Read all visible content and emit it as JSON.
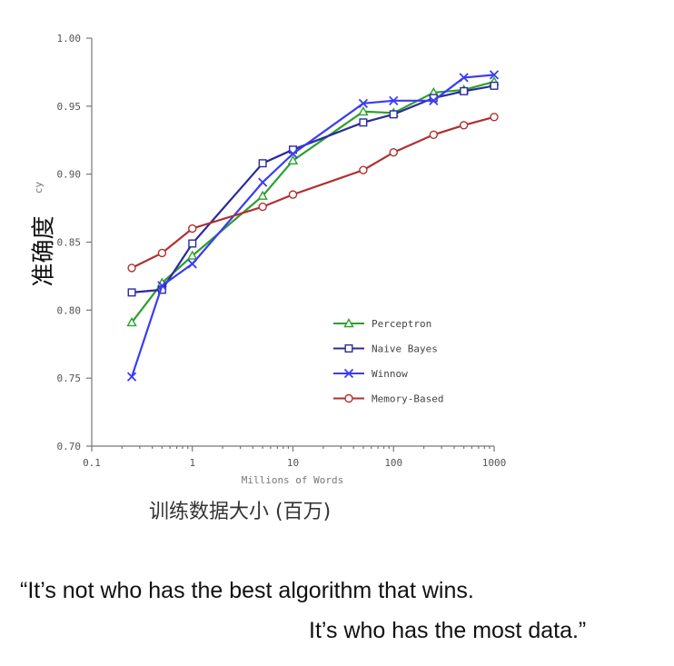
{
  "chart_data": {
    "type": "line",
    "title": "",
    "xlabel": "Millions of Words",
    "ylabel_overlay": "准确度",
    "ylabel_residue": "cy",
    "xlabel_overlay": "训练数据大小 (百万)",
    "x_scale": "log",
    "xlim": [
      0.1,
      1000
    ],
    "ylim": [
      0.7,
      1.0
    ],
    "x_ticks": [
      "0.1",
      "1",
      "10",
      "100",
      "1000"
    ],
    "y_ticks": [
      "0.70",
      "0.75",
      "0.80",
      "0.85",
      "0.90",
      "0.95",
      "1.00"
    ],
    "legend_position": "center-right",
    "series": [
      {
        "name": "Perceptron",
        "color": "#2ca02c",
        "marker": "triangle",
        "points": [
          [
            0.25,
            0.791
          ],
          [
            0.5,
            0.82
          ],
          [
            1,
            0.84
          ],
          [
            5,
            0.884
          ],
          [
            10,
            0.91
          ],
          [
            50,
            0.946
          ],
          [
            100,
            0.945
          ],
          [
            250,
            0.96
          ],
          [
            500,
            0.962
          ],
          [
            1000,
            0.968
          ]
        ]
      },
      {
        "name": "Naive Bayes",
        "color": "#2b2b9c",
        "marker": "square",
        "points": [
          [
            0.25,
            0.813
          ],
          [
            0.5,
            0.815
          ],
          [
            1,
            0.849
          ],
          [
            5,
            0.908
          ],
          [
            10,
            0.918
          ],
          [
            50,
            0.938
          ],
          [
            100,
            0.944
          ],
          [
            250,
            0.956
          ],
          [
            500,
            0.961
          ],
          [
            1000,
            0.965
          ]
        ]
      },
      {
        "name": "Winnow",
        "color": "#3b3bf5",
        "marker": "x",
        "points": [
          [
            0.25,
            0.751
          ],
          [
            0.5,
            0.818
          ],
          [
            1,
            0.834
          ],
          [
            5,
            0.894
          ],
          [
            10,
            0.915
          ],
          [
            50,
            0.952
          ],
          [
            100,
            0.954
          ],
          [
            250,
            0.954
          ],
          [
            500,
            0.971
          ],
          [
            1000,
            0.973
          ]
        ]
      },
      {
        "name": "Memory-Based",
        "color": "#b03030",
        "marker": "circle",
        "points": [
          [
            0.25,
            0.831
          ],
          [
            0.5,
            0.842
          ],
          [
            1,
            0.86
          ],
          [
            5,
            0.876
          ],
          [
            10,
            0.885
          ],
          [
            50,
            0.903
          ],
          [
            100,
            0.916
          ],
          [
            250,
            0.929
          ],
          [
            500,
            0.936
          ],
          [
            1000,
            0.942
          ]
        ]
      }
    ]
  },
  "quote": {
    "line1": "“It’s not who has the best algorithm that wins.",
    "line2": "It’s who has the most data.”"
  }
}
